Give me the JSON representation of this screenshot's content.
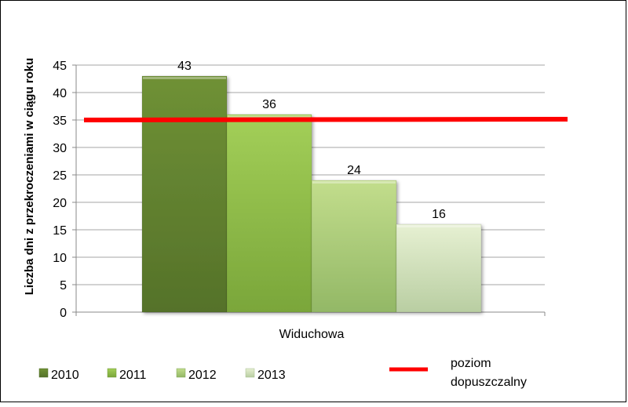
{
  "chart_data": {
    "type": "bar",
    "title": "",
    "xlabel": "",
    "ylabel": "Liczba dni z przekroczeniami w ciągu roku",
    "categories": [
      "Widuchowa"
    ],
    "series": [
      {
        "name": "2010",
        "values": [
          43
        ],
        "color": "#6e8f38"
      },
      {
        "name": "2011",
        "values": [
          36
        ],
        "color": "#92bf46"
      },
      {
        "name": "2012",
        "values": [
          24
        ],
        "color": "#a9cb72"
      },
      {
        "name": "2013",
        "values": [
          16
        ],
        "color": "#d3e3b6"
      }
    ],
    "data_labels": [
      "43",
      "36",
      "24",
      "16"
    ],
    "reference_line": {
      "name": "poziom dopuszczalny",
      "value": 35,
      "color": "#ff0000"
    },
    "ylim": [
      0,
      45
    ],
    "yticks": [
      0,
      5,
      10,
      15,
      20,
      25,
      30,
      35,
      40,
      45
    ],
    "ytick_labels": [
      "0",
      "5",
      "10",
      "15",
      "20",
      "25",
      "30",
      "35",
      "40",
      "45"
    ],
    "grid": true,
    "legend_position": "bottom",
    "legend": {
      "items": [
        "2010",
        "2011",
        "2012",
        "2013"
      ],
      "line_label_1": "poziom",
      "line_label_2": "dopuszczalny"
    }
  }
}
